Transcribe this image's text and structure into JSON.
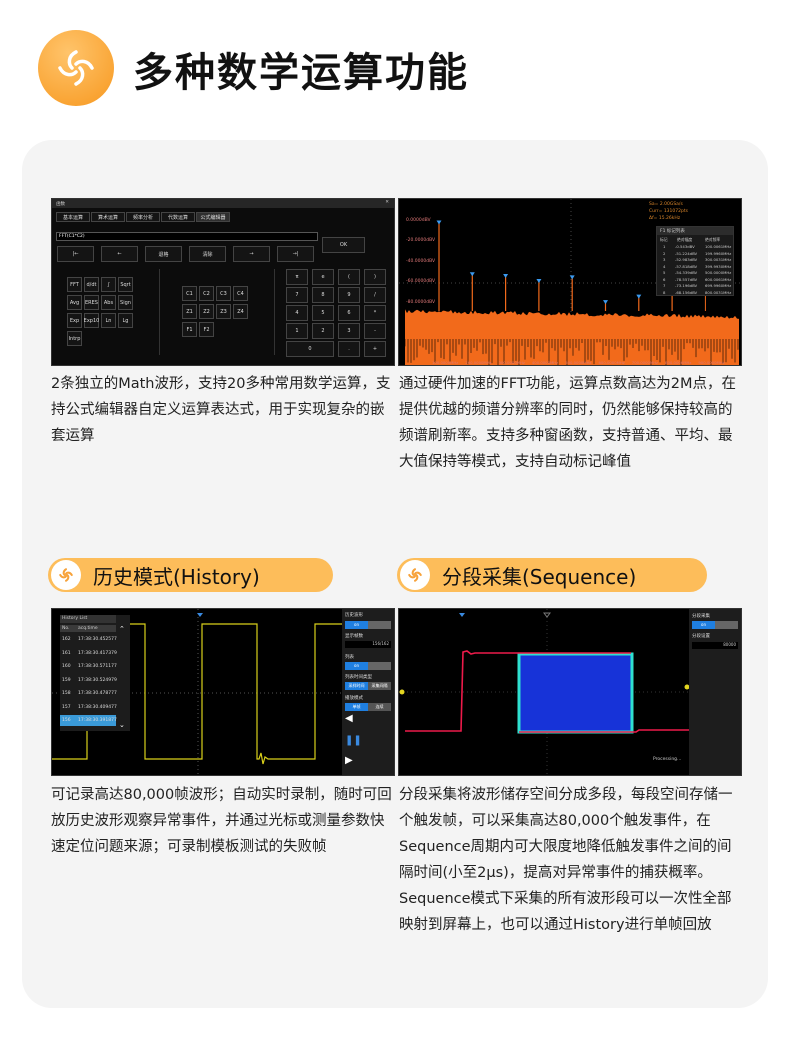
{
  "header": {
    "title": "多种数学运算功能",
    "icon": "swirl-icon",
    "accent": "#f7981f"
  },
  "math": {
    "dialog_title": "函数",
    "tabs": [
      "基本运算",
      "算术运算",
      "频率分析",
      "代数运算",
      "公式编辑器"
    ],
    "formula": "FFT(C1*C2)",
    "nav_buttons": [
      "|←",
      "←",
      "退格",
      "清除",
      "→",
      "→|"
    ],
    "ok": "OK",
    "functions": [
      "FFT",
      "d/dt",
      "∫",
      "Sqrt",
      "Avg",
      "ERES",
      "Abs",
      "Sign",
      "Exp",
      "Exp10",
      "Ln",
      "Lg",
      "Intrp"
    ],
    "sources": [
      "C1",
      "C2",
      "C3",
      "C4",
      "Z1",
      "Z2",
      "Z3",
      "Z4",
      "F1",
      "F2"
    ],
    "keypad": [
      "π",
      "e",
      "(",
      ")",
      "7",
      "8",
      "9",
      "/",
      "4",
      "5",
      "6",
      "*",
      "1",
      "2",
      "3",
      "-",
      "0",
      ".",
      "+"
    ],
    "description": "2条独立的Math波形，支持20多种常用数学运算，支持公式编辑器自定义运算表达式，用于实现复杂的嵌套运算"
  },
  "fft": {
    "info": [
      "Sa= 2.00GSa/s",
      "Curr= 131072pts",
      "Δf= 15.26kHz"
    ],
    "y_labels": [
      "0.0000dBV",
      "-20.0000dBV",
      "-40.0000dBV",
      "-60.0000dBV",
      "-80.0000dBV"
    ],
    "x_labels": [
      "100.0000MHz",
      "200.0000MHz",
      "300.0000MHz",
      "400.0000MHz",
      "500.0000MHz",
      "600.0000MHz",
      "700.0000MHz",
      "800.0000MHz",
      "900.0000MHz"
    ],
    "table_title": "F1 标记列表",
    "table_headers": [
      "标记",
      "绝对幅度",
      "绝对频率"
    ],
    "table_rows": [
      [
        "1",
        "-0.543dBV",
        "100.0061MHz"
      ],
      [
        "2",
        "-51.224dBV",
        "199.9960MHz"
      ],
      [
        "3",
        "-52.983dBV",
        "300.0031MHz"
      ],
      [
        "4",
        "-57.818dBV",
        "399.9930MHz"
      ],
      [
        "5",
        "-54.339dBV",
        "500.0000MHz"
      ],
      [
        "6",
        "-78.557dBV",
        "600.0061MHz"
      ],
      [
        "7",
        "-73.196dBV",
        "699.9960MHz"
      ],
      [
        "8",
        "-68.156dBV",
        "800.0031MHz"
      ]
    ],
    "trace_color": "#f26a1b",
    "description": "通过硬件加速的FFT功能，运算点数高达为2M点，在提供优越的频谱分辨率的同时，仍然能够保持较高的频谱刷新率。支持多种窗函数，支持普通、平均、最大值保持等模式，支持自动标记峰值"
  },
  "history": {
    "pill": "历史模式(History)",
    "list_title": "History List",
    "headers": [
      "No.",
      "acq.time"
    ],
    "rows": [
      [
        "162",
        "17:38:30.452577"
      ],
      [
        "161",
        "17:38:30.417379"
      ],
      [
        "160",
        "17:38:30.571177"
      ],
      [
        "159",
        "17:38:30.524979"
      ],
      [
        "158",
        "17:38:30.478777"
      ],
      [
        "157",
        "17:38:30.409477"
      ],
      [
        "156",
        "17:38:30.391877"
      ]
    ],
    "selected": "156",
    "panel": {
      "history_label": "历史波形",
      "history_state": "on",
      "frames_label": "显示帧数",
      "frames_value": "156/162",
      "list_label": "列表",
      "list_state": "on",
      "time_type_label": "列表时间类型",
      "time_opt1": "采样时间",
      "time_opt2": "采集间隔",
      "play_label": "播放模式",
      "play_opt1": "单帧",
      "play_opt2": "连续"
    },
    "trace_color": "#d9d01a",
    "description": "可记录高达80,000帧波形；自动实时录制，随时可回放历史波形观察异常事件，并通过光标或测量参数快速定位问题来源；可录制模板测试的失败帧"
  },
  "sequence": {
    "pill": "分段采集(Sequence)",
    "panel": {
      "label": "分段采集",
      "state": "on",
      "setting_label": "分段设置",
      "setting_value": "80000"
    },
    "status": "Processing...",
    "description": "分段采集将波形储存空间分成多段，每段空间存储一个触发帧，可以采集高达80,000个触发事件，在Sequence周期内可大限度地降低触发事件之间的间隔时间(小至2μs)，提高对异常事件的捕获概率。Sequence模式下采集的所有波形段可以一次性全部映射到屏幕上，也可以通过History进行单帧回放"
  }
}
